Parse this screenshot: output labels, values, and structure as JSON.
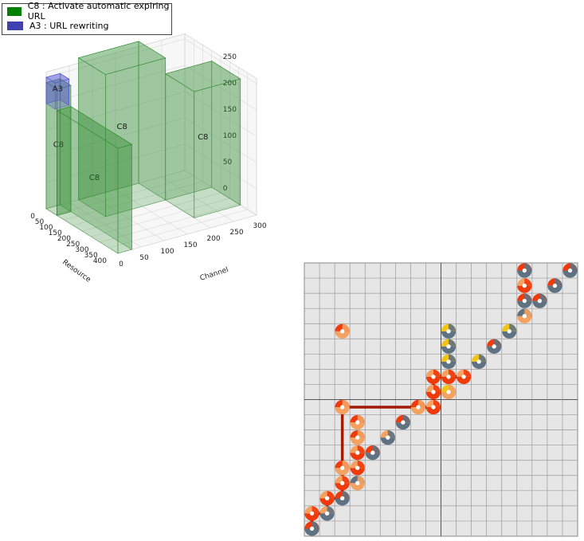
{
  "chart_data": [
    {
      "type": "3d-box",
      "legend": [
        {
          "label": "C8 : Activate automatic expiring URL",
          "color": "#008000"
        },
        {
          "label": "A3 : URL rewriting",
          "color": "#4040b0"
        }
      ],
      "axes": {
        "resource": {
          "label": "Resource",
          "ticks": [
            "0",
            "50",
            "100",
            "150",
            "200",
            "250",
            "300",
            "350",
            "400"
          ],
          "range": [
            0,
            400
          ]
        },
        "channel": {
          "label": "Channel",
          "ticks": [
            "0",
            "50",
            "100",
            "150",
            "200",
            "250",
            "300"
          ],
          "range": [
            0,
            300
          ]
        },
        "z": {
          "label": "",
          "ticks": [
            "0",
            "50",
            "100",
            "150",
            "200",
            "250"
          ],
          "range": [
            0,
            250
          ]
        }
      },
      "boxes": [
        {
          "label": "C8",
          "series": "C8",
          "resource": [
            0,
            60
          ],
          "channel": [
            0,
            30
          ],
          "z": [
            0,
            240
          ]
        },
        {
          "label": "C8",
          "series": "C8",
          "resource": [
            60,
            400
          ],
          "channel": [
            0,
            30
          ],
          "z": [
            0,
            200
          ]
        },
        {
          "label": "C8",
          "series": "C8",
          "resource": [
            0,
            150
          ],
          "channel": [
            70,
            200
          ],
          "z": [
            0,
            270
          ]
        },
        {
          "label": "C8",
          "series": "C8",
          "resource": [
            150,
            310
          ],
          "channel": [
            200,
            300
          ],
          "z": [
            0,
            240
          ]
        },
        {
          "label": "A3",
          "series": "A3",
          "resource": [
            0,
            50
          ],
          "channel": [
            0,
            30
          ],
          "z": [
            200,
            250
          ]
        }
      ]
    },
    {
      "type": "scatter",
      "grid_size": 17,
      "colors": {
        "gray": "#5f7282",
        "red": "#ef3a0c",
        "orange": "#f4a261",
        "yellow": "#f0c419",
        "path": "#a31a06",
        "grid_bg": "#e6e6e6"
      },
      "points": [
        {
          "x": 0,
          "y": 0,
          "ring": [
            "gray",
            "red"
          ]
        },
        {
          "x": 0,
          "y": 1,
          "ring": [
            "red",
            "orange"
          ]
        },
        {
          "x": 1,
          "y": 1,
          "ring": [
            "gray",
            "orange"
          ]
        },
        {
          "x": 1,
          "y": 2,
          "ring": [
            "red",
            "orange"
          ]
        },
        {
          "x": 2,
          "y": 2,
          "ring": [
            "gray",
            "red"
          ]
        },
        {
          "x": 2,
          "y": 3,
          "ring": [
            "red",
            "orange"
          ]
        },
        {
          "x": 2,
          "y": 4,
          "ring": [
            "orange",
            "red"
          ]
        },
        {
          "x": 3,
          "y": 3,
          "ring": [
            "orange",
            "gray"
          ]
        },
        {
          "x": 3,
          "y": 4,
          "ring": [
            "red",
            "orange"
          ]
        },
        {
          "x": 3,
          "y": 5,
          "ring": [
            "red",
            "orange"
          ]
        },
        {
          "x": 3,
          "y": 6,
          "ring": [
            "orange",
            "red"
          ]
        },
        {
          "x": 3,
          "y": 7,
          "ring": [
            "orange",
            "red"
          ]
        },
        {
          "x": 2,
          "y": 8,
          "ring": [
            "orange",
            "red"
          ]
        },
        {
          "x": 4,
          "y": 5,
          "ring": [
            "gray",
            "red"
          ]
        },
        {
          "x": 5,
          "y": 6,
          "ring": [
            "gray",
            "orange"
          ]
        },
        {
          "x": 6,
          "y": 7,
          "ring": [
            "gray",
            "red"
          ]
        },
        {
          "x": 7,
          "y": 8,
          "ring": [
            "orange",
            "red"
          ]
        },
        {
          "x": 8,
          "y": 8,
          "ring": [
            "red",
            "orange"
          ]
        },
        {
          "x": 8,
          "y": 9,
          "ring": [
            "red",
            "orange"
          ]
        },
        {
          "x": 8,
          "y": 10,
          "ring": [
            "red",
            "orange"
          ]
        },
        {
          "x": 9,
          "y": 9,
          "ring": [
            "orange",
            "yellow"
          ]
        },
        {
          "x": 9,
          "y": 10,
          "ring": [
            "red",
            "orange"
          ]
        },
        {
          "x": 10,
          "y": 10,
          "ring": [
            "red",
            "orange"
          ]
        },
        {
          "x": 9,
          "y": 11,
          "ring": [
            "gray",
            "yellow"
          ]
        },
        {
          "x": 9,
          "y": 12,
          "ring": [
            "gray",
            "yellow"
          ]
        },
        {
          "x": 9,
          "y": 13,
          "ring": [
            "gray",
            "yellow"
          ]
        },
        {
          "x": 11,
          "y": 11,
          "ring": [
            "gray",
            "yellow"
          ]
        },
        {
          "x": 12,
          "y": 12,
          "ring": [
            "gray",
            "red"
          ]
        },
        {
          "x": 13,
          "y": 13,
          "ring": [
            "gray",
            "yellow"
          ]
        },
        {
          "x": 14,
          "y": 14,
          "ring": [
            "orange",
            "gray"
          ]
        },
        {
          "x": 14,
          "y": 15,
          "ring": [
            "gray",
            "red"
          ]
        },
        {
          "x": 14,
          "y": 16,
          "ring": [
            "red",
            "orange"
          ]
        },
        {
          "x": 14,
          "y": 17,
          "ring": [
            "gray",
            "red"
          ]
        },
        {
          "x": 15,
          "y": 15,
          "ring": [
            "gray",
            "red"
          ]
        },
        {
          "x": 16,
          "y": 16,
          "ring": [
            "gray",
            "red"
          ]
        },
        {
          "x": 17,
          "y": 17,
          "ring": [
            "gray",
            "red"
          ]
        },
        {
          "x": 2,
          "y": 13,
          "ring": [
            "orange",
            "red"
          ]
        }
      ],
      "path": [
        [
          0,
          0
        ],
        [
          0,
          1
        ],
        [
          1,
          1
        ],
        [
          1,
          2
        ],
        [
          2,
          2
        ],
        [
          2,
          8
        ],
        [
          8,
          8
        ],
        [
          8,
          10
        ],
        [
          10,
          10
        ]
      ]
    }
  ]
}
